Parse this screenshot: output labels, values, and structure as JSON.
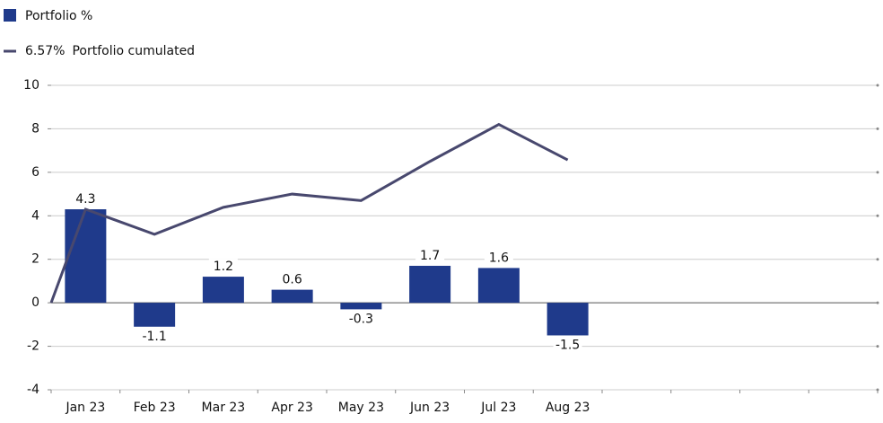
{
  "chart_data": {
    "type": "bar",
    "categories": [
      "Jan 23",
      "Feb 23",
      "Mar 23",
      "Apr 23",
      "May 23",
      "Jun 23",
      "Jul 23",
      "Aug 23",
      null,
      null,
      null,
      null
    ],
    "series": [
      {
        "name": "Portfolio %",
        "type": "bar",
        "color": "#1f3a8b",
        "values": [
          4.3,
          -1.1,
          1.2,
          0.6,
          -0.3,
          1.7,
          1.6,
          -1.5,
          null,
          null,
          null,
          null
        ]
      },
      {
        "name": "Portfolio cumulated",
        "type": "line",
        "color": "#48486e",
        "start_value": 0,
        "legend_value_label": "6.57%",
        "values": [
          4.3,
          3.15,
          4.39,
          5.0,
          4.7,
          6.5,
          8.2,
          6.57,
          null,
          null,
          null,
          null
        ]
      }
    ],
    "ylim": [
      -4,
      10
    ],
    "yticks": [
      -4,
      -2,
      0,
      2,
      4,
      6,
      8,
      10
    ],
    "grid": true
  }
}
